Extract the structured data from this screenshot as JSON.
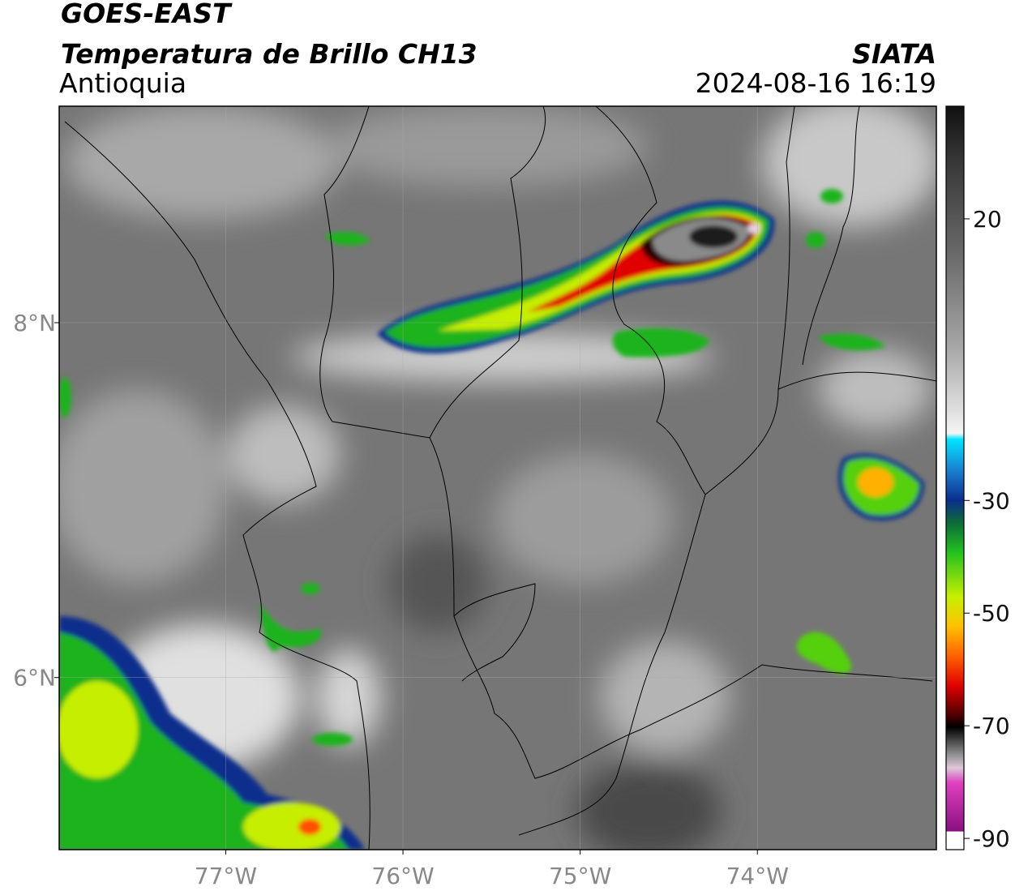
{
  "header": {
    "satellite": "GOES-EAST",
    "product": "Temperatura de Brillo CH13",
    "region": "Antioquia",
    "source": "SIATA",
    "datetime": "2024-08-16 16:19"
  },
  "map": {
    "xlim": [
      -77.94,
      -72.99
    ],
    "ylim": [
      5.03,
      9.22
    ],
    "xticks": [
      {
        "value": -77,
        "label": "77°W"
      },
      {
        "value": -76,
        "label": "76°W"
      },
      {
        "value": -75,
        "label": "75°W"
      },
      {
        "value": -74,
        "label": "74°W"
      }
    ],
    "yticks": [
      {
        "value": 6,
        "label": "6°N"
      },
      {
        "value": 8,
        "label": "8°N"
      }
    ]
  },
  "colorbar": {
    "lim": [
      -92,
      40
    ],
    "ticks": [
      20,
      -30,
      -50,
      -70,
      -90
    ]
  }
}
